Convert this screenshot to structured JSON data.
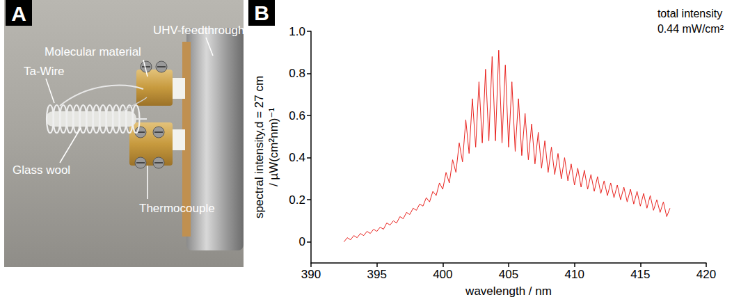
{
  "panel_a": {
    "letter": "A",
    "labels": [
      "UHV-feedthrough",
      "Molecular material",
      "Ta-Wire",
      "Glass wool",
      "Thermocouple"
    ]
  },
  "chart_data": {
    "letter": "B",
    "type": "line",
    "x_label": "wavelength / nm",
    "y_label": [
      "spectral intensity,d = 27 cm",
      "/ µW(cm²nm)⁻¹"
    ],
    "annotation": [
      "total intensity",
      "0.44 mW/cm²"
    ],
    "color": "#e8231f",
    "line_style": "solid",
    "grid": false,
    "xlim": [
      390,
      420
    ],
    "xticks": [
      390,
      395,
      400,
      405,
      410,
      415,
      420
    ],
    "ylim": [
      -0.1,
      1.0
    ],
    "yticks": [
      0,
      0.2,
      0.4,
      0.6,
      0.8,
      {
        "value": 1,
        "label": "1.0"
      }
    ],
    "x": [
      392.5,
      392.75,
      393.0,
      393.25,
      393.5,
      393.75,
      394.0,
      394.25,
      394.5,
      394.75,
      395.0,
      395.25,
      395.5,
      395.75,
      396.0,
      396.25,
      396.5,
      396.75,
      397.0,
      397.25,
      397.5,
      397.75,
      398.0,
      398.25,
      398.5,
      398.75,
      399.0,
      399.25,
      399.5,
      399.75,
      400.0,
      400.25,
      400.5,
      400.75,
      401.0,
      401.25,
      401.5,
      401.75,
      402.0,
      402.25,
      402.5,
      402.75,
      403.0,
      403.25,
      403.5,
      403.75,
      404.0,
      404.25,
      404.5,
      404.75,
      405.0,
      405.25,
      405.5,
      405.75,
      406.0,
      406.25,
      406.5,
      406.75,
      407.0,
      407.25,
      407.5,
      407.75,
      408.0,
      408.25,
      408.5,
      408.75,
      409.0,
      409.25,
      409.5,
      409.75,
      410.0,
      410.25,
      410.5,
      410.75,
      411.0,
      411.25,
      411.5,
      411.75,
      412.0,
      412.25,
      412.5,
      412.75,
      413.0,
      413.25,
      413.5,
      413.75,
      414.0,
      414.25,
      414.5,
      414.75,
      415.0,
      415.25,
      415.5,
      415.75,
      416.0,
      416.25,
      416.5,
      416.75,
      417.0,
      417.25
    ],
    "values": [
      0.0,
      0.02,
      0.01,
      0.03,
      0.02,
      0.04,
      0.03,
      0.05,
      0.04,
      0.06,
      0.05,
      0.07,
      0.06,
      0.09,
      0.08,
      0.1,
      0.09,
      0.12,
      0.11,
      0.14,
      0.13,
      0.16,
      0.15,
      0.18,
      0.17,
      0.21,
      0.19,
      0.24,
      0.22,
      0.28,
      0.25,
      0.33,
      0.28,
      0.39,
      0.33,
      0.47,
      0.38,
      0.58,
      0.42,
      0.68,
      0.45,
      0.76,
      0.47,
      0.82,
      0.48,
      0.88,
      0.48,
      0.91,
      0.47,
      0.84,
      0.45,
      0.76,
      0.43,
      0.68,
      0.41,
      0.61,
      0.39,
      0.56,
      0.37,
      0.52,
      0.35,
      0.48,
      0.33,
      0.45,
      0.32,
      0.42,
      0.3,
      0.4,
      0.29,
      0.37,
      0.27,
      0.35,
      0.26,
      0.34,
      0.25,
      0.32,
      0.24,
      0.31,
      0.23,
      0.29,
      0.22,
      0.28,
      0.21,
      0.27,
      0.2,
      0.26,
      0.19,
      0.25,
      0.18,
      0.24,
      0.17,
      0.23,
      0.16,
      0.22,
      0.15,
      0.2,
      0.14,
      0.19,
      0.12,
      0.16
    ]
  }
}
